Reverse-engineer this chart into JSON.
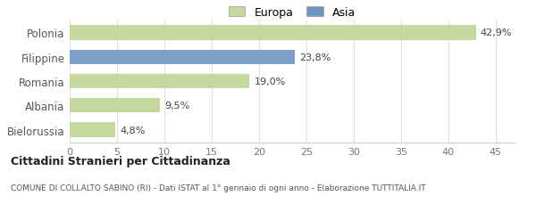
{
  "categories": [
    "Polonia",
    "Filippine",
    "Romania",
    "Albania",
    "Bielorussia"
  ],
  "values": [
    42.9,
    23.8,
    19.0,
    9.5,
    4.8
  ],
  "labels": [
    "42,9%",
    "23,8%",
    "19,0%",
    "9,5%",
    "4,8%"
  ],
  "colors": [
    "#c5d89d",
    "#7b9fc7",
    "#c5d89d",
    "#c5d89d",
    "#c5d89d"
  ],
  "legend_items": [
    {
      "label": "Europa",
      "color": "#c5d89d"
    },
    {
      "label": "Asia",
      "color": "#6b97c2"
    }
  ],
  "xlim": [
    0,
    47
  ],
  "xticks": [
    0,
    5,
    10,
    15,
    20,
    25,
    30,
    35,
    40,
    45
  ],
  "title_bold": "Cittadini Stranieri per Cittadinanza",
  "subtitle": "COMUNE DI COLLALTO SABINO (RI) - Dati ISTAT al 1° gennaio di ogni anno - Elaborazione TUTTITALIA.IT",
  "background_color": "#ffffff",
  "bar_height": 0.6
}
